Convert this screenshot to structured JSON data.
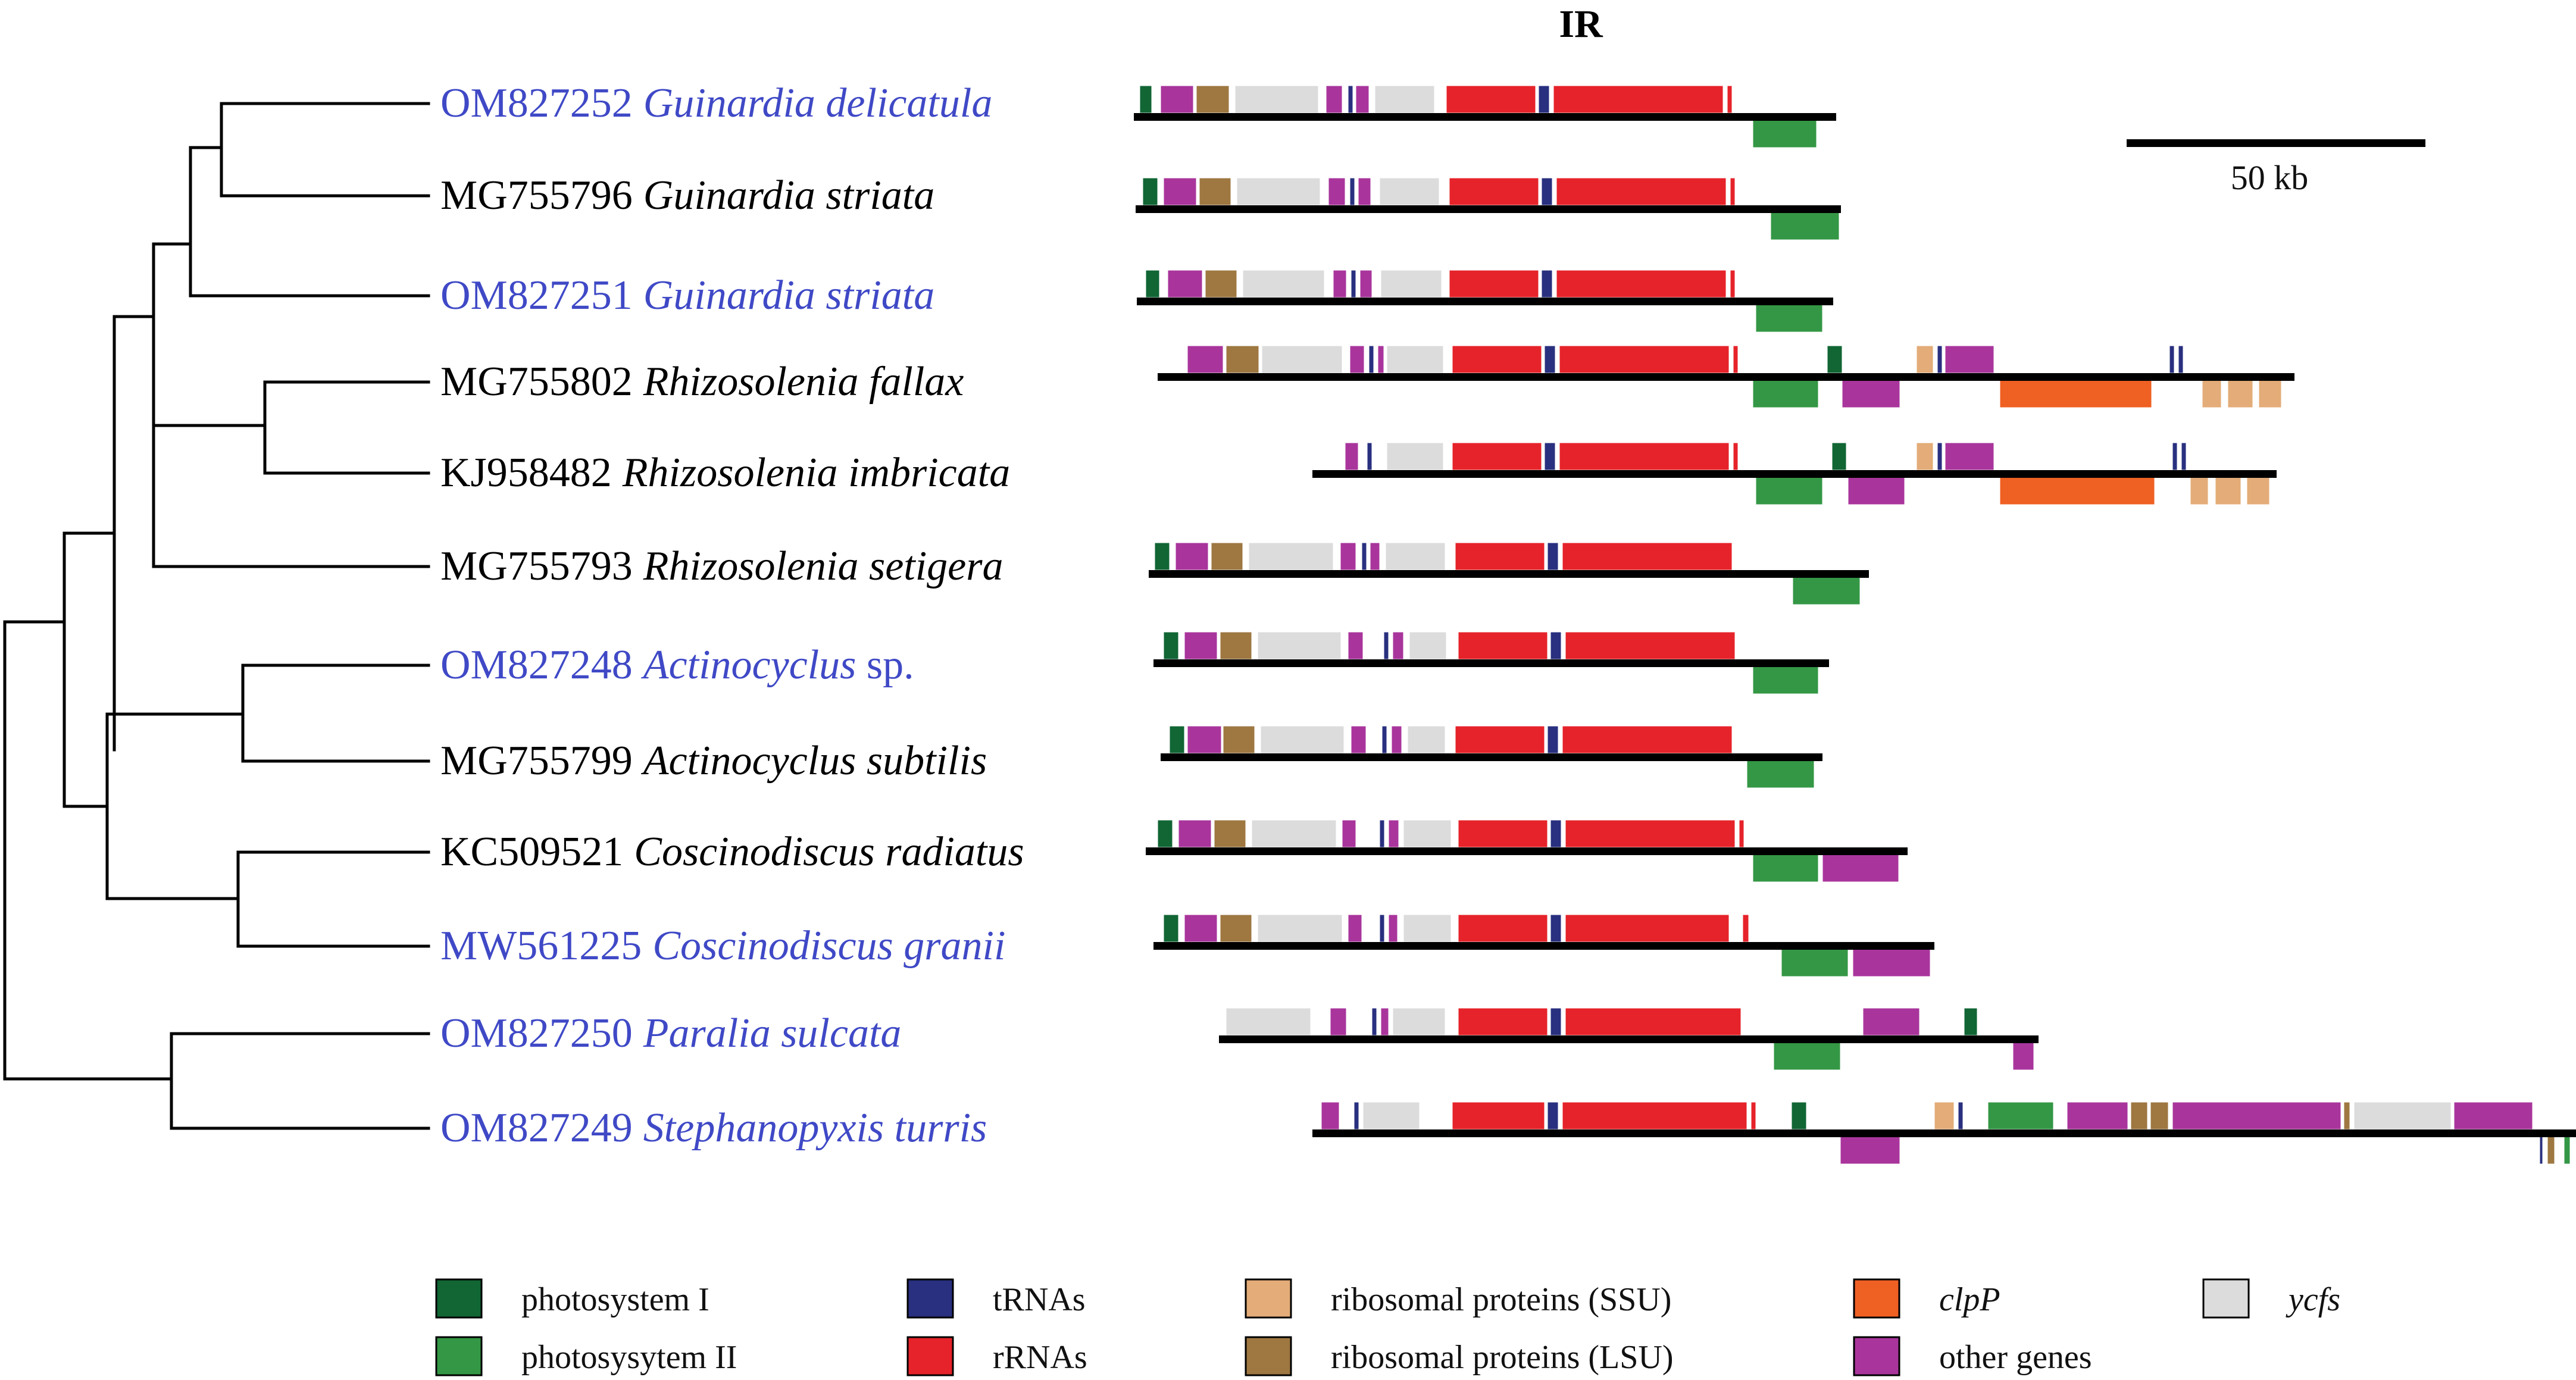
{
  "title": "IR",
  "scale_bar": {
    "label": "50 kb"
  },
  "colors": {
    "photosystem_I": "#116634",
    "photosystem_II": "#349745",
    "tRNAs": "#29307f",
    "rRNAs": "#e6232a",
    "rp_SSU": "#e3ac78",
    "rp_LSU": "#9e7741",
    "clpP": "#ef6023",
    "other": "#a9359c",
    "ycfs": "#dcdcdc",
    "label_new": "#3f49c6",
    "label_old": "#000000"
  },
  "legend": [
    {
      "id": "photosystem_I",
      "label": "photosystem I",
      "italic": false
    },
    {
      "id": "photosystem_II",
      "label": "photosysytem II",
      "italic": false
    },
    {
      "id": "tRNAs",
      "label": "tRNAs",
      "italic": false
    },
    {
      "id": "rRNAs",
      "label": "rRNAs",
      "italic": false
    },
    {
      "id": "rp_SSU",
      "label": "ribosomal proteins (SSU)",
      "italic": false
    },
    {
      "id": "rp_LSU",
      "label": "ribosomal proteins (LSU)",
      "italic": false
    },
    {
      "id": "clpP",
      "label": "clpP",
      "italic": true
    },
    {
      "id": "other",
      "label": "other genes",
      "italic": false
    },
    {
      "id": "ycfs",
      "label": "ycfs",
      "italic": true
    }
  ],
  "taxa": [
    {
      "accession": "OM827252",
      "species": "Guinardia delicatula",
      "suffix": "",
      "new": true
    },
    {
      "accession": "MG755796",
      "species": "Guinardia striata",
      "suffix": "",
      "new": false
    },
    {
      "accession": "OM827251",
      "species": "Guinardia striata",
      "suffix": "",
      "new": true
    },
    {
      "accession": "MG755802",
      "species": "Rhizosolenia fallax",
      "suffix": "",
      "new": false
    },
    {
      "accession": "KJ958482",
      "species": "Rhizosolenia imbricata",
      "suffix": "",
      "new": false
    },
    {
      "accession": "MG755793",
      "species": "Rhizosolenia setigera",
      "suffix": "",
      "new": false
    },
    {
      "accession": "OM827248",
      "species": "Actinocyclus",
      "suffix": " sp.",
      "new": true
    },
    {
      "accession": "MG755799",
      "species": "Actinocyclus subtilis",
      "suffix": "",
      "new": false
    },
    {
      "accession": "KC509521",
      "species": "Coscinodiscus radiatus",
      "suffix": "",
      "new": false
    },
    {
      "accession": "MW561225",
      "species": "Coscinodiscus granii",
      "suffix": "",
      "new": true
    },
    {
      "accession": "OM827250",
      "species": "Paralia sulcata",
      "suffix": "",
      "new": true
    },
    {
      "accession": "OM827249",
      "species": "Stephanopyxis turris",
      "suffix": "",
      "new": true
    }
  ]
}
